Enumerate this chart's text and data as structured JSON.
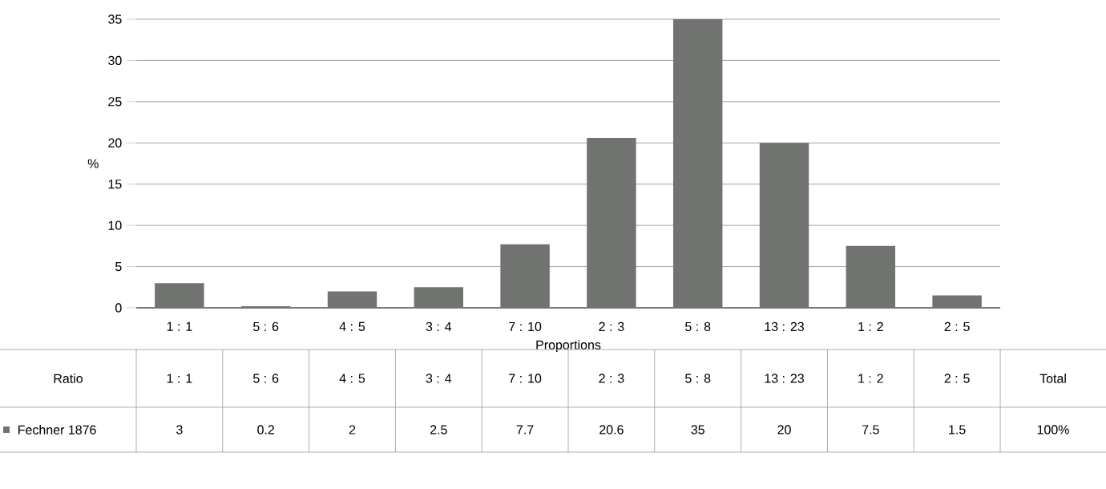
{
  "chart_data": {
    "type": "bar",
    "xlabel": "Proportions",
    "ylabel": "%",
    "categories": [
      "1 : 1",
      "5 : 6",
      "4 : 5",
      "3 : 4",
      "7 : 10",
      "2 : 3",
      "5 : 8",
      "13 : 23",
      "1 : 2",
      "2 : 5"
    ],
    "series": [
      {
        "name": "Fechner 1876",
        "color": "#707370",
        "values": [
          3,
          0.2,
          2,
          2.5,
          7.7,
          20.6,
          35,
          20,
          7.5,
          1.5
        ]
      }
    ],
    "ylim": [
      0,
      35
    ],
    "yticks": [
      0,
      5,
      10,
      15,
      20,
      25,
      30,
      35
    ],
    "grid": "y",
    "data_labels": true,
    "annotations": [
      "Ratio",
      "Total",
      "100%"
    ]
  }
}
